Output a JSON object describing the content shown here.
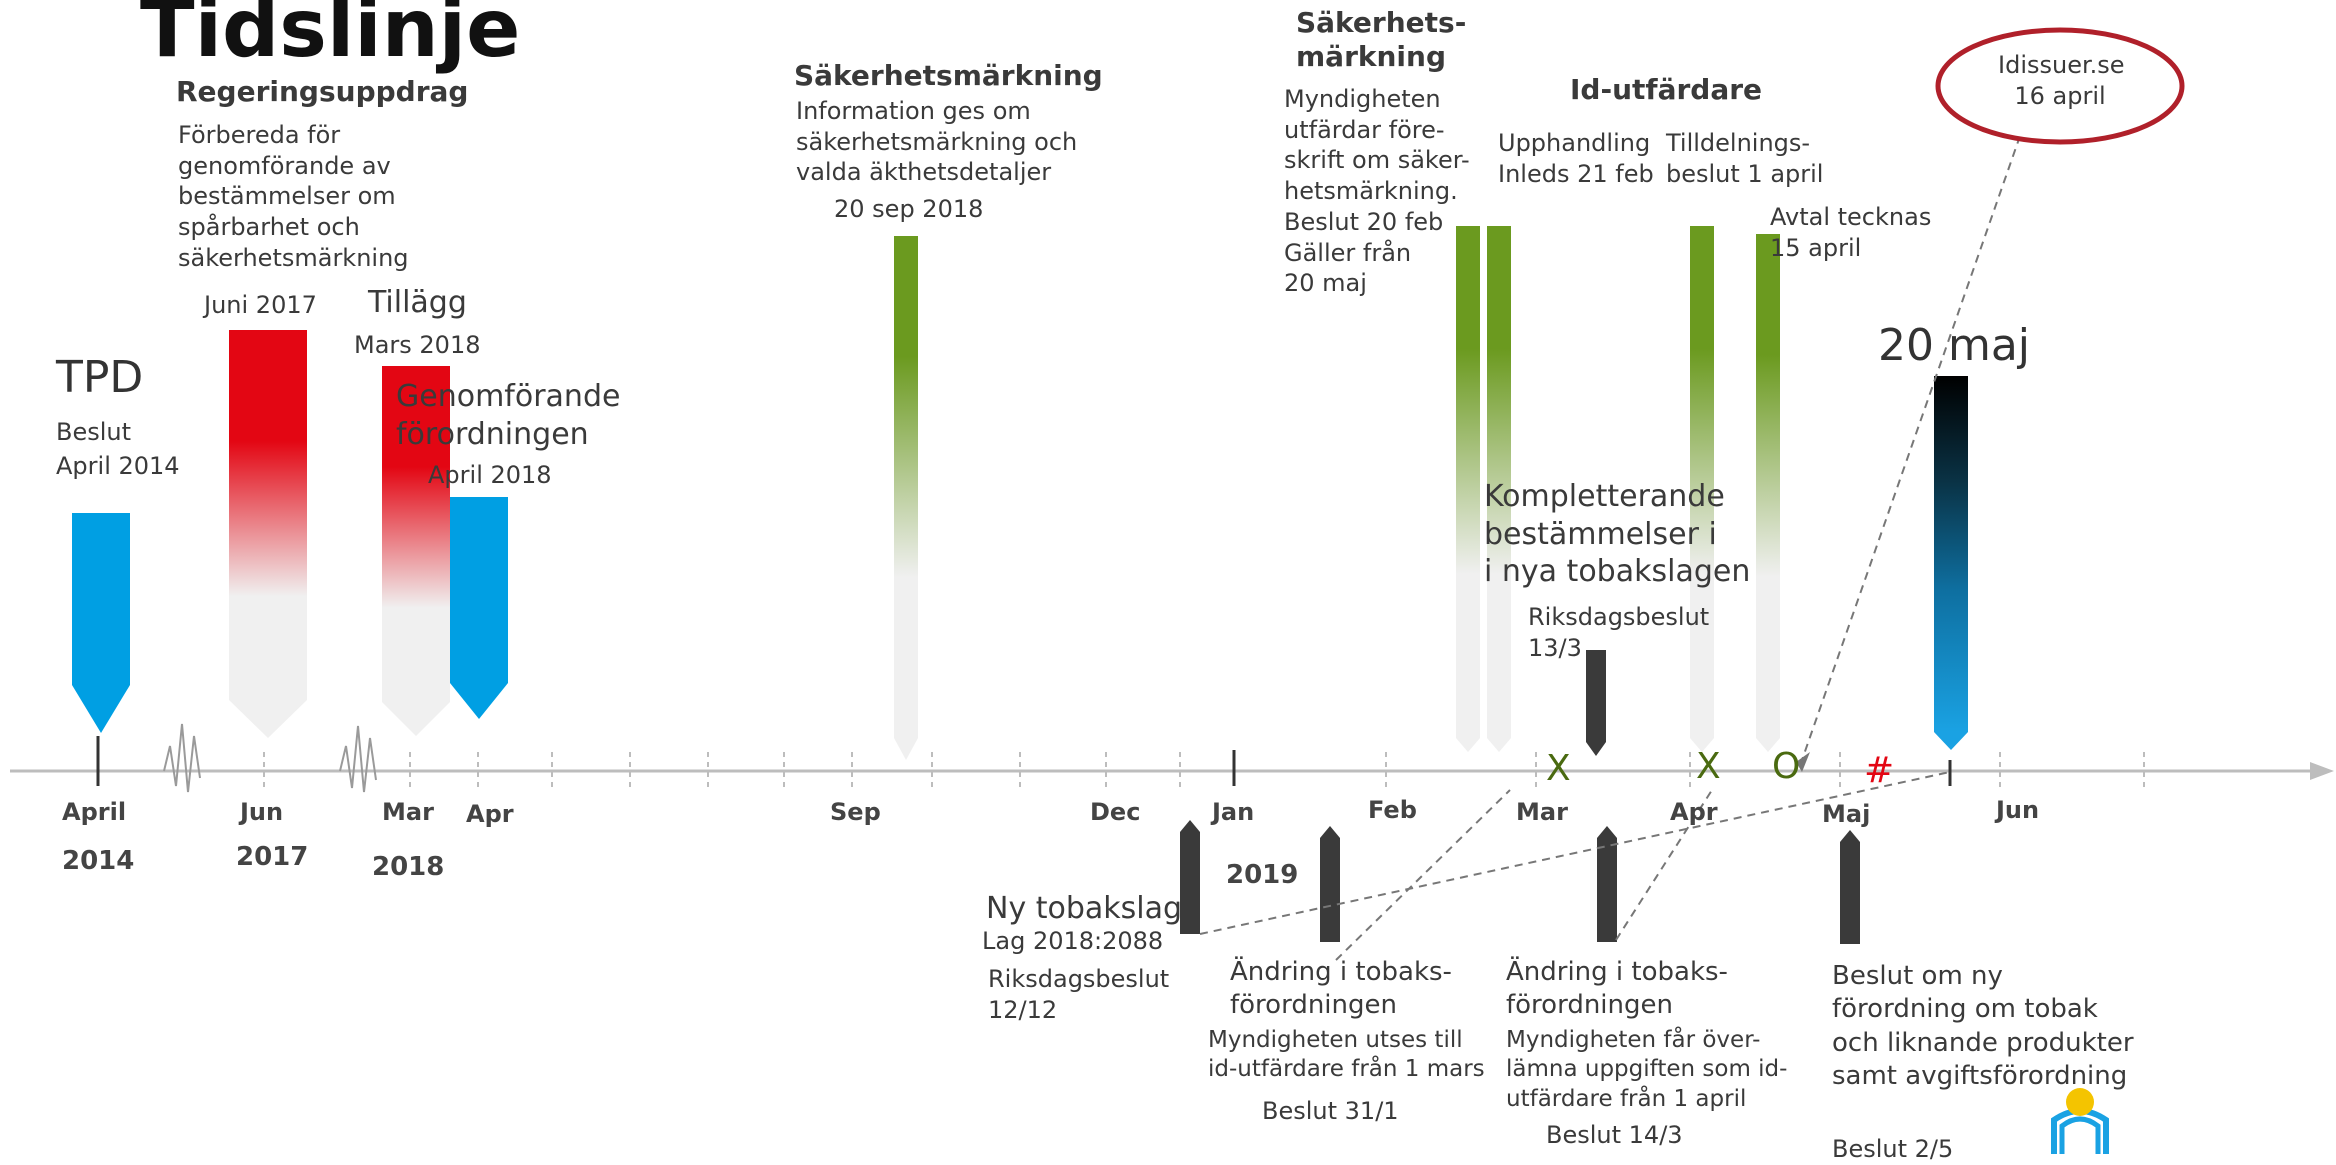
{
  "page": {
    "title": "Tidslinje"
  },
  "upper": {
    "tpd": {
      "title": "TPD",
      "text": "Beslut\nApril 2014"
    },
    "regering": {
      "title": "Regeringsuppdrag",
      "text": "Förbereda för\ngenomförande av\nbestämmelser om\nspårbarhet och\nsäkerhetsmärkning",
      "date": "Juni 2017"
    },
    "tillagg": {
      "title": "Tillägg",
      "date": "Mars 2018"
    },
    "genomforande": {
      "title": "Genomförande\nförordningen",
      "date": "April 2018"
    },
    "sak1": {
      "title": "Säkerhetsmärkning",
      "text": "Information ges om\nsäkerhetsmärkning och\nvalda äkthetsdetaljer",
      "date": "20 sep 2018"
    },
    "sak2": {
      "title": "Säkerhets-\nmärkning",
      "text": "Myndigheten\nutfärdar före-\nskrift om säker-\nhetsmärkning.\nBeslut 20 feb\nGäller från\n20 maj"
    },
    "id": {
      "title": "Id-utfärdare",
      "upph": "Upphandling\nInleds 21 feb",
      "tilld": "Tilldelnings-\nbeslut 1 april",
      "avtal": "Avtal tecknas\n15 april"
    },
    "idissuer": "Idissuer.se\n16 april",
    "maj20": "20 maj",
    "kompl": {
      "title": "Kompletterande\nbestämmelser i\ni nya tobakslagen",
      "text": "Riksdagsbeslut\n13/3"
    }
  },
  "markers": {
    "x1": "X",
    "x2": "X",
    "o": "O",
    "hash": "#"
  },
  "axis": {
    "months": [
      "April",
      "Jun",
      "Mar",
      "Apr",
      "Sep",
      "Dec",
      "Jan",
      "Feb",
      "Mar",
      "Apr",
      "Maj",
      "Jun"
    ],
    "years": [
      "2014",
      "2017",
      "2018",
      "2019"
    ]
  },
  "lower": {
    "nytobak": {
      "title": "Ny tobakslag",
      "text": "Lag 2018:2088",
      "text2": "Riksdagsbeslut\n12/12"
    },
    "andring1": {
      "title": "Ändring i tobaks-\nförordningen",
      "text": "Myndigheten utses till\nid-utfärdare från 1 mars",
      "date": "Beslut 31/1"
    },
    "andring2": {
      "title": "Ändring i tobaks-\nförordningen",
      "text": "Myndigheten får över-\nlämna uppgiften som id-\nutfärdare från 1 april",
      "date": "Beslut 14/3"
    },
    "nyforord": {
      "title": "Beslut om ny\nförordning om tobak\noch liknande produkter\nsamt avgiftsförordning",
      "date": "Beslut 2/5"
    }
  },
  "colors": {
    "blue": "#009fe3",
    "red": "#e30613",
    "green": "#6b9a1f",
    "dark": "#3a3a3a",
    "marker_green": "#4a6a10",
    "marker_red": "#e30613",
    "oval": "#b0202a"
  }
}
